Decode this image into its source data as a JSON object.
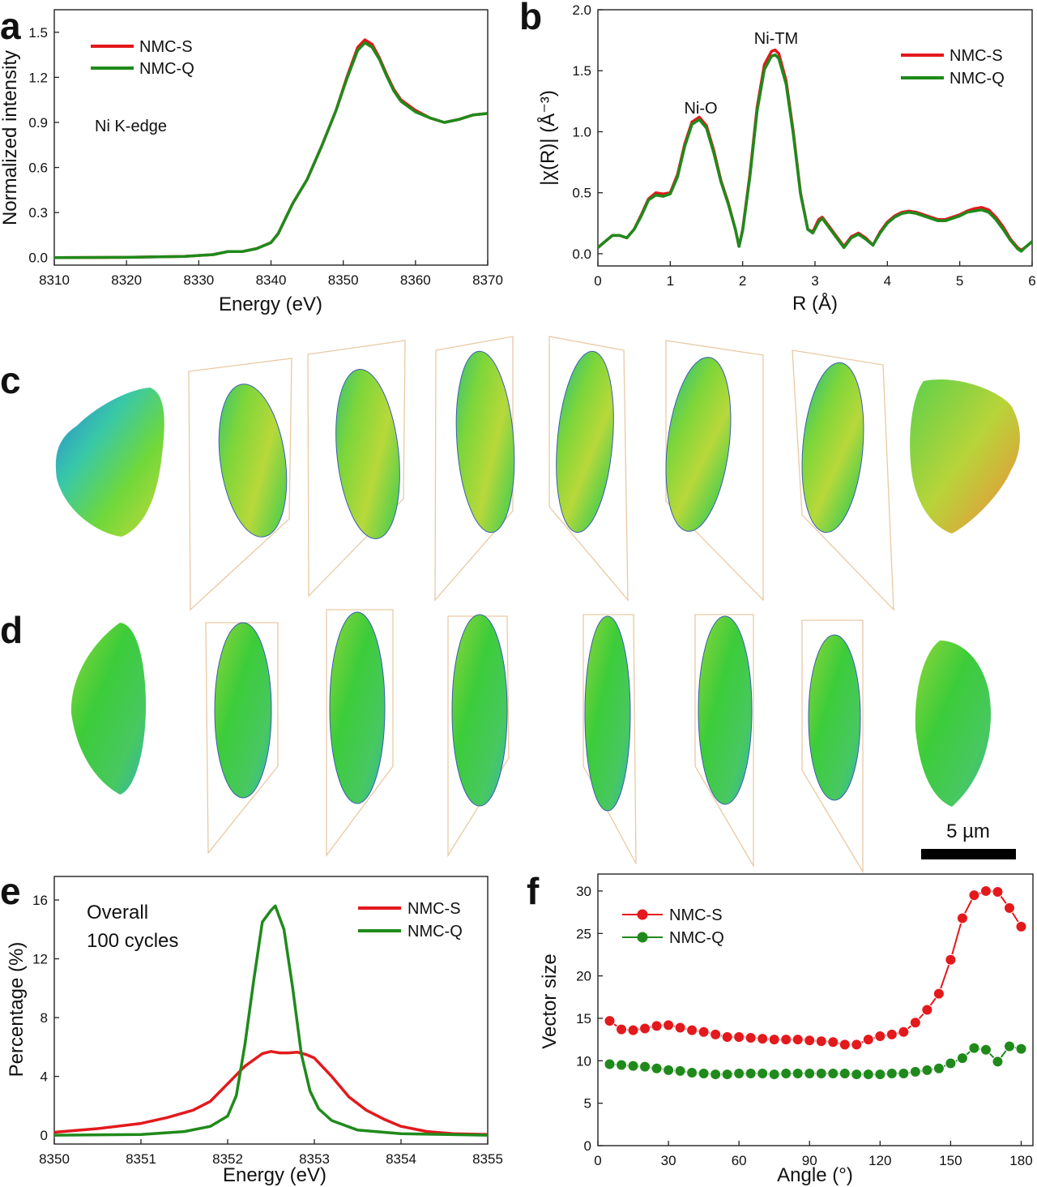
{
  "colors": {
    "nmc_s": "#e3191c",
    "nmc_q": "#1f8a1b",
    "plane": "#e9c9a3",
    "scalebar": "#000000"
  },
  "panels": {
    "a": "a",
    "b": "b",
    "c": "c",
    "d": "d",
    "e": "e",
    "f": "f"
  },
  "scalebar": {
    "label": "5 µm"
  },
  "chart_data": [
    {
      "id": "a",
      "type": "line",
      "title": "",
      "xlabel": "Energy (eV)",
      "ylabel": "Normalized intensity",
      "xlim": [
        8310,
        8370
      ],
      "ylim": [
        -0.05,
        1.65
      ],
      "xticks": [
        8310,
        8320,
        8330,
        8340,
        8350,
        8360,
        8370
      ],
      "yticks": [
        0.0,
        0.3,
        0.6,
        0.9,
        1.2,
        1.5
      ],
      "xtick_labels": [
        "8310",
        "8320",
        "8330",
        "8340",
        "8350",
        "8360",
        "8370"
      ],
      "ytick_labels": [
        "0.0",
        "0.3",
        "0.6",
        "0.9",
        "1.2",
        "1.5"
      ],
      "annotations": [
        {
          "text": "Ni K-edge",
          "x": 8317,
          "y": 0.91
        }
      ],
      "legend": "top-left",
      "series": [
        {
          "name": "NMC-S",
          "color_key": "nmc_s",
          "x": [
            8310,
            8320,
            8328,
            8332,
            8334,
            8336,
            8338,
            8340,
            8341,
            8342,
            8343,
            8345,
            8347,
            8349,
            8350.5,
            8352,
            8353,
            8354,
            8355,
            8356,
            8357,
            8358,
            8360,
            8362,
            8364,
            8366,
            8368,
            8370
          ],
          "y": [
            0.0,
            0.002,
            0.008,
            0.02,
            0.04,
            0.04,
            0.06,
            0.1,
            0.16,
            0.26,
            0.36,
            0.52,
            0.74,
            0.98,
            1.2,
            1.4,
            1.45,
            1.42,
            1.33,
            1.22,
            1.12,
            1.05,
            0.98,
            0.93,
            0.9,
            0.92,
            0.95,
            0.96
          ]
        },
        {
          "name": "NMC-Q",
          "color_key": "nmc_q",
          "x": [
            8310,
            8320,
            8328,
            8332,
            8334,
            8336,
            8338,
            8340,
            8341,
            8342,
            8343,
            8345,
            8347,
            8349,
            8350.5,
            8352,
            8353,
            8354,
            8355,
            8356,
            8357,
            8358,
            8360,
            8362,
            8364,
            8366,
            8368,
            8370
          ],
          "y": [
            0.0,
            0.002,
            0.008,
            0.02,
            0.04,
            0.04,
            0.06,
            0.1,
            0.16,
            0.26,
            0.36,
            0.52,
            0.74,
            0.98,
            1.19,
            1.38,
            1.43,
            1.4,
            1.32,
            1.21,
            1.11,
            1.04,
            0.97,
            0.93,
            0.9,
            0.92,
            0.95,
            0.96
          ]
        }
      ]
    },
    {
      "id": "b",
      "type": "line",
      "title": "",
      "xlabel": "R (Å)",
      "ylabel": "|χ(R)| (Å⁻³)",
      "xlim": [
        0,
        6
      ],
      "ylim": [
        -0.1,
        2.0
      ],
      "xticks": [
        0,
        1,
        2,
        3,
        4,
        5,
        6
      ],
      "yticks": [
        0.0,
        0.5,
        1.0,
        1.5,
        2.0
      ],
      "xtick_labels": [
        "0",
        "1",
        "2",
        "3",
        "4",
        "5",
        "6"
      ],
      "ytick_labels": [
        "0.0",
        "0.5",
        "1.0",
        "1.5",
        "2.0"
      ],
      "annotations": [
        {
          "text": "Ni-O",
          "x": 1.42,
          "y": 1.17
        },
        {
          "text": "Ni-TM",
          "x": 2.45,
          "y": 1.72
        }
      ],
      "legend": "top-right",
      "series": [
        {
          "name": "NMC-S",
          "color_key": "nmc_s",
          "x": [
            0,
            0.1,
            0.2,
            0.3,
            0.4,
            0.5,
            0.6,
            0.7,
            0.8,
            0.9,
            1.0,
            1.1,
            1.2,
            1.3,
            1.4,
            1.5,
            1.6,
            1.7,
            1.8,
            1.9,
            1.95,
            2.0,
            2.1,
            2.2,
            2.3,
            2.4,
            2.45,
            2.5,
            2.6,
            2.7,
            2.8,
            2.9,
            2.97,
            3.05,
            3.1,
            3.2,
            3.3,
            3.4,
            3.5,
            3.6,
            3.7,
            3.8,
            3.9,
            4.0,
            4.1,
            4.2,
            4.3,
            4.4,
            4.5,
            4.6,
            4.7,
            4.8,
            4.9,
            5.0,
            5.1,
            5.2,
            5.3,
            5.4,
            5.5,
            5.6,
            5.7,
            5.8,
            5.85,
            5.9,
            6.0
          ],
          "y": [
            0.05,
            0.1,
            0.15,
            0.15,
            0.13,
            0.2,
            0.32,
            0.45,
            0.5,
            0.49,
            0.5,
            0.65,
            0.9,
            1.08,
            1.12,
            1.05,
            0.85,
            0.6,
            0.42,
            0.2,
            0.06,
            0.2,
            0.65,
            1.2,
            1.55,
            1.66,
            1.67,
            1.64,
            1.42,
            1.0,
            0.5,
            0.2,
            0.18,
            0.28,
            0.3,
            0.22,
            0.14,
            0.06,
            0.14,
            0.17,
            0.13,
            0.07,
            0.18,
            0.26,
            0.31,
            0.34,
            0.35,
            0.34,
            0.32,
            0.3,
            0.28,
            0.28,
            0.3,
            0.32,
            0.35,
            0.37,
            0.38,
            0.36,
            0.3,
            0.22,
            0.12,
            0.05,
            0.03,
            0.05,
            0.1
          ]
        },
        {
          "name": "NMC-Q",
          "color_key": "nmc_q",
          "x": [
            0,
            0.1,
            0.2,
            0.3,
            0.4,
            0.5,
            0.6,
            0.7,
            0.8,
            0.9,
            1.0,
            1.1,
            1.2,
            1.3,
            1.4,
            1.5,
            1.6,
            1.7,
            1.8,
            1.9,
            1.95,
            2.0,
            2.1,
            2.2,
            2.3,
            2.4,
            2.45,
            2.5,
            2.6,
            2.7,
            2.8,
            2.9,
            2.97,
            3.05,
            3.1,
            3.2,
            3.3,
            3.4,
            3.5,
            3.6,
            3.7,
            3.8,
            3.9,
            4.0,
            4.1,
            4.2,
            4.3,
            4.4,
            4.5,
            4.6,
            4.7,
            4.8,
            4.9,
            5.0,
            5.1,
            5.2,
            5.3,
            5.4,
            5.5,
            5.6,
            5.7,
            5.8,
            5.85,
            5.9,
            6.0
          ],
          "y": [
            0.05,
            0.1,
            0.15,
            0.15,
            0.13,
            0.2,
            0.31,
            0.44,
            0.48,
            0.47,
            0.49,
            0.63,
            0.88,
            1.06,
            1.1,
            1.03,
            0.83,
            0.59,
            0.41,
            0.2,
            0.06,
            0.19,
            0.63,
            1.17,
            1.51,
            1.62,
            1.63,
            1.6,
            1.39,
            0.98,
            0.49,
            0.2,
            0.17,
            0.26,
            0.29,
            0.21,
            0.13,
            0.05,
            0.13,
            0.16,
            0.12,
            0.07,
            0.17,
            0.25,
            0.3,
            0.33,
            0.34,
            0.33,
            0.31,
            0.29,
            0.27,
            0.27,
            0.29,
            0.31,
            0.34,
            0.35,
            0.36,
            0.34,
            0.28,
            0.2,
            0.11,
            0.04,
            0.02,
            0.05,
            0.1
          ]
        }
      ]
    },
    {
      "id": "e",
      "type": "line",
      "title": "",
      "xlabel": "Energy (eV)",
      "ylabel": "Percentage (%)",
      "xlim": [
        8350,
        8355
      ],
      "ylim": [
        -0.6,
        17.6
      ],
      "xticks": [
        8350,
        8351,
        8352,
        8353,
        8354,
        8355
      ],
      "yticks": [
        0,
        4,
        8,
        12,
        16
      ],
      "xtick_labels": [
        "8350",
        "8351",
        "8352",
        "8353",
        "8354",
        "8355"
      ],
      "ytick_labels": [
        "0",
        "4",
        "8",
        "12",
        "16"
      ],
      "annotations": [
        {
          "text": "Overall",
          "x": 8350.55,
          "y": 15.0
        },
        {
          "text": "100 cycles",
          "x": 8350.55,
          "y": 11.0
        }
      ],
      "legend": "top-right",
      "series": [
        {
          "name": "NMC-S",
          "color_key": "nmc_s",
          "x": [
            8350,
            8350.5,
            8351,
            8351.3,
            8351.6,
            8351.8,
            8352,
            8352.2,
            8352.4,
            8352.5,
            8352.6,
            8352.7,
            8352.8,
            8352.9,
            8353,
            8353.2,
            8353.4,
            8353.6,
            8353.8,
            8354,
            8354.3,
            8354.6,
            8355
          ],
          "y": [
            0.2,
            0.45,
            0.8,
            1.2,
            1.7,
            2.3,
            3.5,
            4.7,
            5.55,
            5.7,
            5.6,
            5.6,
            5.65,
            5.5,
            5.25,
            4.0,
            2.6,
            1.7,
            1.1,
            0.6,
            0.25,
            0.1,
            0.05
          ]
        },
        {
          "name": "NMC-Q",
          "color_key": "nmc_q",
          "x": [
            8350,
            8351,
            8351.5,
            8351.8,
            8352,
            8352.1,
            8352.2,
            8352.3,
            8352.4,
            8352.5,
            8352.55,
            8352.65,
            8352.75,
            8352.85,
            8352.95,
            8353.05,
            8353.2,
            8353.5,
            8354,
            8355
          ],
          "y": [
            0.0,
            0.05,
            0.25,
            0.6,
            1.3,
            2.7,
            6.2,
            10.5,
            14.5,
            15.3,
            15.6,
            14.0,
            10.0,
            5.5,
            3.0,
            1.8,
            1.0,
            0.35,
            0.1,
            0.0
          ]
        }
      ]
    },
    {
      "id": "f",
      "type": "scatter",
      "title": "",
      "xlabel": "Angle (°)",
      "ylabel": "Vector size",
      "xlim": [
        0,
        185
      ],
      "ylim": [
        0,
        32
      ],
      "xticks": [
        0,
        30,
        60,
        90,
        120,
        150,
        180
      ],
      "yticks": [
        0,
        5,
        10,
        15,
        20,
        25,
        30
      ],
      "xtick_labels": [
        "0",
        "30",
        "60",
        "90",
        "120",
        "150",
        "180"
      ],
      "ytick_labels": [
        "0",
        "5",
        "10",
        "15",
        "20",
        "25",
        "30"
      ],
      "legend": "top-left",
      "series": [
        {
          "name": "NMC-S",
          "color_key": "nmc_s",
          "x": [
            5,
            10,
            15,
            20,
            25,
            30,
            35,
            40,
            45,
            50,
            55,
            60,
            65,
            70,
            75,
            80,
            85,
            90,
            95,
            100,
            105,
            110,
            115,
            120,
            125,
            130,
            135,
            140,
            145,
            150,
            155,
            160,
            165,
            170,
            175,
            180
          ],
          "y": [
            14.7,
            13.7,
            13.6,
            13.8,
            14.1,
            14.2,
            13.9,
            13.6,
            13.4,
            13.1,
            12.8,
            12.8,
            12.7,
            12.6,
            12.5,
            12.5,
            12.5,
            12.4,
            12.3,
            12.2,
            11.9,
            11.9,
            12.5,
            12.9,
            13.1,
            13.4,
            14.5,
            16.0,
            17.9,
            21.9,
            26.8,
            29.5,
            30.0,
            29.9,
            28.0,
            25.8
          ]
        },
        {
          "name": "NMC-Q",
          "color_key": "nmc_q",
          "x": [
            5,
            10,
            15,
            20,
            25,
            30,
            35,
            40,
            45,
            50,
            55,
            60,
            65,
            70,
            75,
            80,
            85,
            90,
            95,
            100,
            105,
            110,
            115,
            120,
            125,
            130,
            135,
            140,
            145,
            150,
            155,
            160,
            165,
            170,
            175,
            180
          ],
          "y": [
            9.6,
            9.5,
            9.4,
            9.3,
            9.1,
            8.9,
            8.8,
            8.6,
            8.5,
            8.4,
            8.4,
            8.5,
            8.5,
            8.5,
            8.4,
            8.5,
            8.5,
            8.5,
            8.5,
            8.5,
            8.5,
            8.4,
            8.4,
            8.4,
            8.5,
            8.5,
            8.7,
            8.9,
            9.1,
            9.7,
            10.3,
            11.5,
            11.3,
            9.9,
            11.7,
            11.4
          ]
        }
      ]
    }
  ]
}
